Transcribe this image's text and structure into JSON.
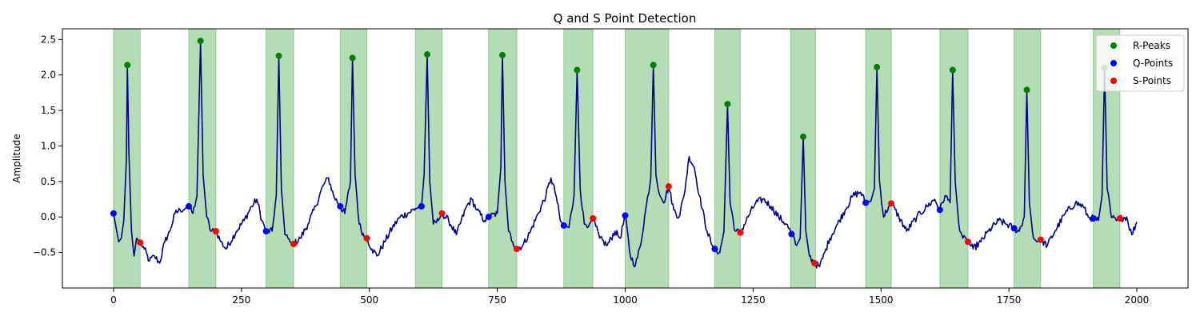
{
  "chart_data": {
    "type": "line",
    "title": "Q and S Point Detection",
    "xlabel": "",
    "ylabel": "Amplitude",
    "xlim": [
      -100,
      2100
    ],
    "ylim": [
      -1.0,
      2.65
    ],
    "xticks": [
      0,
      250,
      500,
      750,
      1000,
      1250,
      1500,
      1750,
      2000
    ],
    "yticks": [
      -0.5,
      0.0,
      0.5,
      1.0,
      1.5,
      2.0,
      2.5
    ],
    "grid": false,
    "legend_position": "top-right",
    "colors": {
      "signal": "#00008b",
      "r_peaks": "#008000",
      "q_points": "#0000ff",
      "s_points": "#ff0000",
      "qrs_region": "#4caf50"
    },
    "signal_baseline": [
      [
        0,
        0.05
      ],
      [
        5,
        -0.15
      ],
      [
        10,
        -0.35
      ],
      [
        15,
        -0.3
      ],
      [
        20,
        -0.05
      ],
      [
        25,
        0.8
      ],
      [
        27,
        2.14
      ],
      [
        30,
        0.9
      ],
      [
        35,
        -0.2
      ],
      [
        40,
        -0.55
      ],
      [
        45,
        -0.3
      ],
      [
        52,
        -0.36
      ],
      [
        60,
        -0.45
      ],
      [
        70,
        -0.62
      ],
      [
        80,
        -0.55
      ],
      [
        90,
        -0.65
      ],
      [
        100,
        -0.35
      ],
      [
        110,
        -0.2
      ],
      [
        120,
        0.05
      ],
      [
        130,
        0.1
      ],
      [
        140,
        0.12
      ],
      [
        147,
        0.15
      ],
      [
        155,
        0.05
      ],
      [
        163,
        0.3
      ],
      [
        170,
        2.48
      ],
      [
        175,
        0.6
      ],
      [
        182,
        0.0
      ],
      [
        190,
        -0.2
      ],
      [
        200,
        -0.2
      ],
      [
        210,
        -0.35
      ],
      [
        220,
        -0.45
      ],
      [
        240,
        -0.2
      ],
      [
        255,
        -0.05
      ],
      [
        270,
        0.15
      ],
      [
        280,
        0.25
      ],
      [
        290,
        -0.05
      ],
      [
        298,
        -0.2
      ],
      [
        310,
        -0.2
      ],
      [
        318,
        0.3
      ],
      [
        323,
        2.27
      ],
      [
        328,
        0.4
      ],
      [
        335,
        -0.25
      ],
      [
        345,
        -0.35
      ],
      [
        352,
        -0.38
      ],
      [
        365,
        -0.3
      ],
      [
        380,
        -0.1
      ],
      [
        395,
        0.15
      ],
      [
        410,
        0.45
      ],
      [
        420,
        0.55
      ],
      [
        430,
        0.3
      ],
      [
        443,
        0.15
      ],
      [
        452,
        0.05
      ],
      [
        463,
        0.5
      ],
      [
        467,
        2.24
      ],
      [
        472,
        0.6
      ],
      [
        480,
        -0.1
      ],
      [
        490,
        -0.28
      ],
      [
        495,
        -0.3
      ],
      [
        505,
        -0.45
      ],
      [
        515,
        -0.55
      ],
      [
        530,
        -0.35
      ],
      [
        545,
        -0.15
      ],
      [
        560,
        0.0
      ],
      [
        575,
        0.05
      ],
      [
        590,
        0.12
      ],
      [
        602,
        0.15
      ],
      [
        607,
        0.6
      ],
      [
        613,
        2.29
      ],
      [
        618,
        0.5
      ],
      [
        625,
        -0.1
      ],
      [
        635,
        -0.05
      ],
      [
        642,
        0.05
      ],
      [
        655,
        -0.05
      ],
      [
        670,
        -0.25
      ],
      [
        690,
        0.15
      ],
      [
        700,
        0.25
      ],
      [
        710,
        0.1
      ],
      [
        725,
        -0.05
      ],
      [
        733,
        0.0
      ],
      [
        750,
        0.05
      ],
      [
        757,
        0.7
      ],
      [
        760,
        2.28
      ],
      [
        765,
        0.5
      ],
      [
        772,
        -0.2
      ],
      [
        780,
        -0.35
      ],
      [
        788,
        -0.45
      ],
      [
        800,
        -0.4
      ],
      [
        815,
        -0.2
      ],
      [
        830,
        0.05
      ],
      [
        845,
        0.3
      ],
      [
        855,
        0.55
      ],
      [
        865,
        0.3
      ],
      [
        873,
        -0.05
      ],
      [
        880,
        -0.12
      ],
      [
        890,
        -0.15
      ],
      [
        900,
        0.3
      ],
      [
        906,
        2.07
      ],
      [
        912,
        0.4
      ],
      [
        920,
        -0.1
      ],
      [
        930,
        -0.1
      ],
      [
        937,
        -0.02
      ],
      [
        950,
        -0.3
      ],
      [
        965,
        -0.4
      ],
      [
        980,
        -0.2
      ],
      [
        990,
        -0.3
      ],
      [
        1000,
        0.02
      ],
      [
        1010,
        -0.55
      ],
      [
        1020,
        -0.68
      ],
      [
        1030,
        -0.4
      ],
      [
        1040,
        0.1
      ],
      [
        1050,
        0.55
      ],
      [
        1055,
        2.14
      ],
      [
        1060,
        0.6
      ],
      [
        1068,
        0.3
      ],
      [
        1075,
        0.2
      ],
      [
        1085,
        0.43
      ],
      [
        1095,
        0.1
      ],
      [
        1105,
        0.0
      ],
      [
        1115,
        0.3
      ],
      [
        1125,
        0.85
      ],
      [
        1135,
        0.7
      ],
      [
        1145,
        0.3
      ],
      [
        1160,
        -0.2
      ],
      [
        1170,
        -0.4
      ],
      [
        1175,
        -0.45
      ],
      [
        1185,
        -0.5
      ],
      [
        1193,
        -0.2
      ],
      [
        1200,
        1.59
      ],
      [
        1205,
        0.2
      ],
      [
        1215,
        -0.2
      ],
      [
        1225,
        -0.22
      ],
      [
        1240,
        0.0
      ],
      [
        1255,
        0.2
      ],
      [
        1270,
        0.25
      ],
      [
        1285,
        0.15
      ],
      [
        1300,
        0.0
      ],
      [
        1315,
        -0.1
      ],
      [
        1325,
        -0.24
      ],
      [
        1335,
        -0.4
      ],
      [
        1342,
        -0.3
      ],
      [
        1348,
        1.13
      ],
      [
        1353,
        -0.2
      ],
      [
        1360,
        -0.55
      ],
      [
        1370,
        -0.65
      ],
      [
        1380,
        -0.7
      ],
      [
        1390,
        -0.5
      ],
      [
        1400,
        -0.3
      ],
      [
        1415,
        -0.1
      ],
      [
        1430,
        0.1
      ],
      [
        1445,
        0.3
      ],
      [
        1460,
        0.35
      ],
      [
        1470,
        0.2
      ],
      [
        1480,
        0.22
      ],
      [
        1487,
        0.4
      ],
      [
        1492,
        2.11
      ],
      [
        1497,
        0.5
      ],
      [
        1505,
        0.0
      ],
      [
        1515,
        0.15
      ],
      [
        1520,
        0.19
      ],
      [
        1535,
        0.0
      ],
      [
        1550,
        -0.2
      ],
      [
        1570,
        0.0
      ],
      [
        1590,
        0.15
      ],
      [
        1605,
        0.25
      ],
      [
        1615,
        0.1
      ],
      [
        1625,
        0.3
      ],
      [
        1635,
        0.2
      ],
      [
        1640,
        2.07
      ],
      [
        1645,
        0.5
      ],
      [
        1652,
        -0.1
      ],
      [
        1660,
        -0.3
      ],
      [
        1670,
        -0.35
      ],
      [
        1680,
        -0.45
      ],
      [
        1695,
        -0.35
      ],
      [
        1710,
        -0.2
      ],
      [
        1730,
        -0.05
      ],
      [
        1745,
        -0.1
      ],
      [
        1760,
        -0.16
      ],
      [
        1770,
        -0.2
      ],
      [
        1780,
        0.0
      ],
      [
        1785,
        1.79
      ],
      [
        1790,
        0.2
      ],
      [
        1798,
        -0.3
      ],
      [
        1805,
        -0.35
      ],
      [
        1812,
        -0.32
      ],
      [
        1825,
        -0.4
      ],
      [
        1840,
        -0.2
      ],
      [
        1860,
        0.05
      ],
      [
        1880,
        0.2
      ],
      [
        1895,
        0.15
      ],
      [
        1905,
        0.0
      ],
      [
        1915,
        -0.02
      ],
      [
        1925,
        -0.05
      ],
      [
        1932,
        0.3
      ],
      [
        1937,
        2.1
      ],
      [
        1942,
        0.4
      ],
      [
        1950,
        0.0
      ],
      [
        1960,
        -0.05
      ],
      [
        1967,
        -0.02
      ],
      [
        1980,
        0.0
      ],
      [
        1990,
        -0.25
      ],
      [
        2000,
        -0.07
      ]
    ],
    "series": [
      {
        "name": "R-Peaks",
        "marker": "dot",
        "x": [
          27,
          170,
          323,
          467,
          613,
          760,
          906,
          1055,
          1200,
          1348,
          1492,
          1640,
          1785,
          1937
        ],
        "y": [
          2.14,
          2.48,
          2.27,
          2.24,
          2.29,
          2.28,
          2.07,
          2.14,
          1.59,
          1.13,
          2.11,
          2.07,
          1.79,
          2.1
        ]
      },
      {
        "name": "Q-Points",
        "marker": "dot",
        "x": [
          0,
          147,
          298,
          443,
          602,
          733,
          880,
          1000,
          1175,
          1325,
          1470,
          1615,
          1760,
          1915
        ],
        "y": [
          0.05,
          0.15,
          -0.2,
          0.15,
          0.15,
          0.0,
          -0.12,
          0.02,
          -0.45,
          -0.24,
          0.2,
          0.1,
          -0.16,
          -0.02
        ]
      },
      {
        "name": "S-Points",
        "marker": "dot",
        "x": [
          52,
          200,
          352,
          495,
          642,
          788,
          937,
          1085,
          1225,
          1370,
          1520,
          1670,
          1812,
          1967
        ],
        "y": [
          -0.36,
          -0.2,
          -0.38,
          -0.3,
          0.05,
          -0.45,
          -0.02,
          0.43,
          -0.22,
          -0.65,
          0.19,
          -0.35,
          -0.32,
          -0.02
        ]
      }
    ],
    "qrs_regions": [
      [
        0,
        52
      ],
      [
        147,
        200
      ],
      [
        298,
        352
      ],
      [
        443,
        495
      ],
      [
        590,
        642
      ],
      [
        733,
        788
      ],
      [
        880,
        937
      ],
      [
        1000,
        1085
      ],
      [
        1175,
        1225
      ],
      [
        1323,
        1372
      ],
      [
        1470,
        1520
      ],
      [
        1615,
        1670
      ],
      [
        1760,
        1812
      ],
      [
        1915,
        1967
      ]
    ]
  }
}
